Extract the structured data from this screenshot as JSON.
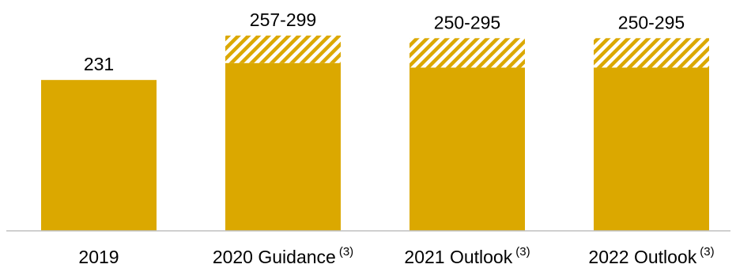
{
  "chart_data": {
    "type": "bar",
    "categories": [
      "2019",
      "2020 Guidance",
      "2021 Outlook",
      "2022 Outlook"
    ],
    "footnote_markers": [
      "",
      "(3)",
      "(3)",
      "(3)"
    ],
    "values_low": [
      231,
      257,
      250,
      250
    ],
    "values_high": [
      231,
      299,
      295,
      295
    ],
    "data_labels": [
      "231",
      "257-299",
      "250-295",
      "250-295"
    ],
    "ylim": [
      0,
      299
    ],
    "grid": false,
    "legend": "none",
    "colors": {
      "bar": "#DBA800",
      "range_hatch": "#DBA800",
      "axis": "#BFBFBF",
      "text": "#000000"
    }
  }
}
